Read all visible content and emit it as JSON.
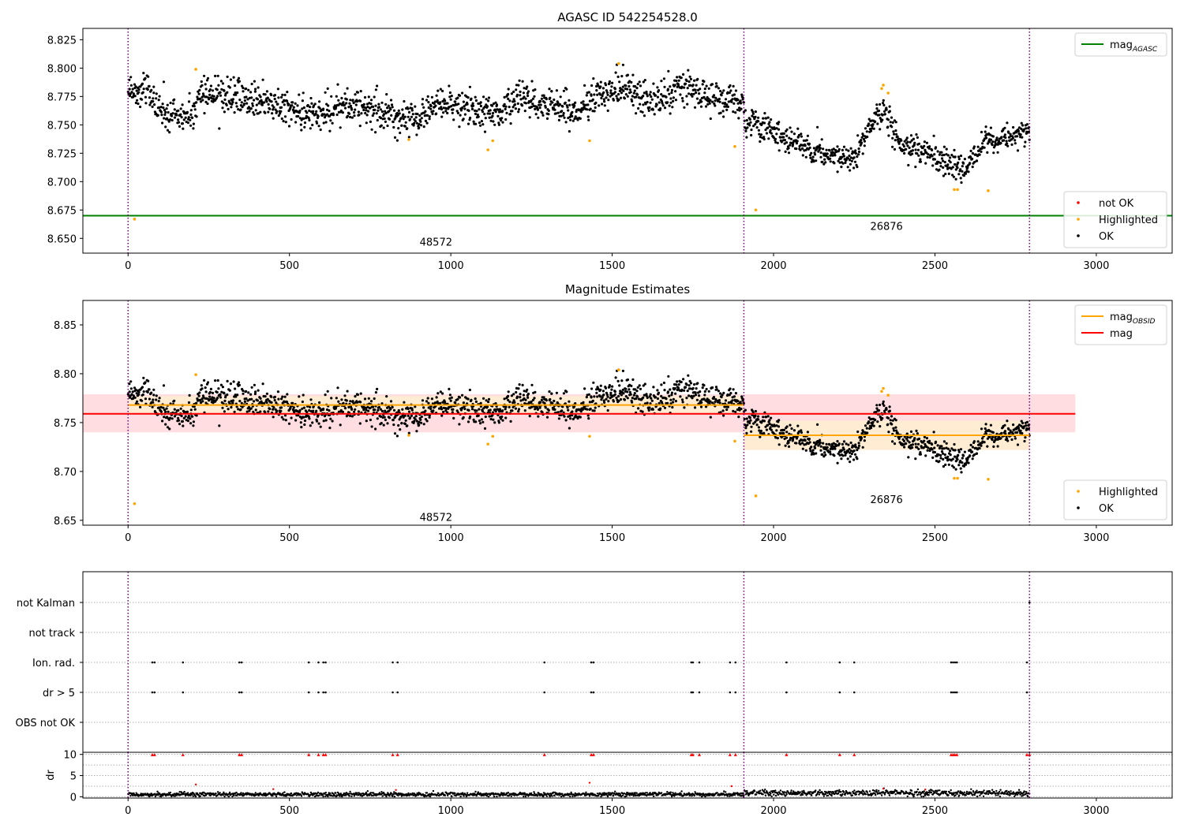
{
  "colors": {
    "ok": "#000000",
    "highlighted": "#ffa500",
    "not_ok": "#ff0000",
    "agasc_line": "#008000",
    "obsid_line": "#ffa500",
    "mag_line": "#ff0000",
    "mag_band": "#ffdde0",
    "obsid_band": "#ffecd2",
    "obs_boundary": "#800080",
    "grid": "#b0b0b0"
  },
  "chart_data": [
    {
      "id": "panel1",
      "type": "scatter",
      "title": "AGASC ID 542254528.0",
      "xlim": [
        -140,
        3235
      ],
      "ylim": [
        8.637,
        8.835
      ],
      "xticks": [
        0,
        500,
        1000,
        1500,
        2000,
        2500,
        3000
      ],
      "yticks": [
        8.65,
        8.675,
        8.7,
        8.725,
        8.75,
        8.775,
        8.8,
        8.825
      ],
      "ytick_labels": [
        "8.650",
        "8.675",
        "8.700",
        "8.725",
        "8.750",
        "8.775",
        "8.800",
        "8.825"
      ],
      "obs_boundaries": [
        0,
        1908,
        2793
      ],
      "obs_labels": [
        {
          "text": "48572",
          "x": 954,
          "y": 8.647
        },
        {
          "text": "26876",
          "x": 2350,
          "y": 8.661
        }
      ],
      "hlines": [
        {
          "name": "mag_AGASC",
          "y": 8.67,
          "x": [
            -140,
            3235
          ],
          "color": "#008000"
        }
      ],
      "bands": [],
      "segments": [
        {
          "x": [
            0,
            1908
          ],
          "base": 8.768,
          "amp": 0.014,
          "wave": [
            [
              0,
              8.782
            ],
            [
              60,
              8.78
            ],
            [
              120,
              8.757
            ],
            [
              200,
              8.76
            ],
            [
              230,
              8.78
            ],
            [
              400,
              8.77
            ],
            [
              600,
              8.76
            ],
            [
              700,
              8.768
            ],
            [
              850,
              8.758
            ],
            [
              900,
              8.752
            ],
            [
              950,
              8.77
            ],
            [
              1150,
              8.76
            ],
            [
              1200,
              8.772
            ],
            [
              1300,
              8.768
            ],
            [
              1400,
              8.76
            ],
            [
              1450,
              8.778
            ],
            [
              1550,
              8.782
            ],
            [
              1620,
              8.768
            ],
            [
              1700,
              8.782
            ],
            [
              1908,
              8.77
            ]
          ]
        },
        {
          "x": [
            1908,
            2793
          ],
          "base": 8.737,
          "amp": 0.011,
          "wave": [
            [
              1908,
              8.755
            ],
            [
              2000,
              8.745
            ],
            [
              2060,
              8.735
            ],
            [
              2150,
              8.725
            ],
            [
              2250,
              8.722
            ],
            [
              2300,
              8.75
            ],
            [
              2340,
              8.765
            ],
            [
              2400,
              8.73
            ],
            [
              2470,
              8.728
            ],
            [
              2550,
              8.718
            ],
            [
              2590,
              8.708
            ],
            [
              2650,
              8.735
            ],
            [
              2700,
              8.737
            ],
            [
              2793,
              8.745
            ]
          ]
        }
      ],
      "highlighted": [
        [
          20,
          8.667
        ],
        [
          210,
          8.799
        ],
        [
          870,
          8.737
        ],
        [
          1115,
          8.728
        ],
        [
          1130,
          8.736
        ],
        [
          1430,
          8.736
        ],
        [
          1520,
          8.804
        ],
        [
          1880,
          8.731
        ],
        [
          1945,
          8.675
        ],
        [
          2335,
          8.782
        ],
        [
          2340,
          8.785
        ],
        [
          2355,
          8.778
        ],
        [
          2560,
          8.693
        ],
        [
          2570,
          8.693
        ],
        [
          2665,
          8.692
        ]
      ],
      "not_ok": [],
      "legends": [
        {
          "position": "upper right",
          "entries": [
            {
              "label": "mag",
              "sub": "AGASC",
              "kind": "line",
              "color": "#008000"
            }
          ]
        },
        {
          "position": "lower right",
          "entries": [
            {
              "label": "not OK",
              "kind": "dot",
              "color": "#ff0000"
            },
            {
              "label": "Highlighted",
              "kind": "dot",
              "color": "#ffa500"
            },
            {
              "label": "OK",
              "kind": "dot",
              "color": "#000000"
            }
          ]
        }
      ]
    },
    {
      "id": "panel2",
      "type": "scatter",
      "title": "Magnitude Estimates",
      "xlim": [
        -140,
        3235
      ],
      "ylim": [
        8.645,
        8.875
      ],
      "xticks": [
        0,
        500,
        1000,
        1500,
        2000,
        2500,
        3000
      ],
      "yticks": [
        8.65,
        8.7,
        8.75,
        8.8,
        8.85
      ],
      "ytick_labels": [
        "8.65",
        "8.70",
        "8.75",
        "8.80",
        "8.85"
      ],
      "obs_boundaries": [
        0,
        1908,
        2793
      ],
      "obs_labels": [
        {
          "text": "48572",
          "x": 954,
          "y": 8.6535
        },
        {
          "text": "26876",
          "x": 2350,
          "y": 8.6715
        }
      ],
      "bands": [
        {
          "x": [
            -140,
            2935
          ],
          "y": [
            8.74,
            8.779
          ],
          "color": "#ffdde0"
        },
        {
          "x": [
            0,
            1908
          ],
          "y": [
            8.76,
            8.777
          ],
          "color": "#ffecd2"
        },
        {
          "x": [
            1908,
            2793
          ],
          "y": [
            8.722,
            8.752
          ],
          "color": "#ffecd2"
        }
      ],
      "hlines": [
        {
          "name": "mag_OBSID",
          "y": 8.768,
          "x": [
            0,
            1908
          ],
          "color": "#ffa500"
        },
        {
          "name": "mag_OBSID",
          "y": 8.737,
          "x": [
            1908,
            2793
          ],
          "color": "#ffa500"
        },
        {
          "name": "mag",
          "y": 8.759,
          "x": [
            -140,
            2935
          ],
          "color": "#ff0000"
        }
      ],
      "segments": [
        {
          "x": [
            0,
            1908
          ],
          "base": 8.768,
          "amp": 0.014,
          "wave": [
            [
              0,
              8.782
            ],
            [
              60,
              8.78
            ],
            [
              120,
              8.757
            ],
            [
              200,
              8.76
            ],
            [
              230,
              8.78
            ],
            [
              400,
              8.77
            ],
            [
              600,
              8.76
            ],
            [
              700,
              8.768
            ],
            [
              850,
              8.758
            ],
            [
              900,
              8.752
            ],
            [
              950,
              8.77
            ],
            [
              1150,
              8.76
            ],
            [
              1200,
              8.772
            ],
            [
              1300,
              8.768
            ],
            [
              1400,
              8.76
            ],
            [
              1450,
              8.778
            ],
            [
              1550,
              8.782
            ],
            [
              1620,
              8.768
            ],
            [
              1700,
              8.782
            ],
            [
              1908,
              8.77
            ]
          ]
        },
        {
          "x": [
            1908,
            2793
          ],
          "base": 8.737,
          "amp": 0.011,
          "wave": [
            [
              1908,
              8.755
            ],
            [
              2000,
              8.745
            ],
            [
              2060,
              8.735
            ],
            [
              2150,
              8.725
            ],
            [
              2250,
              8.722
            ],
            [
              2300,
              8.75
            ],
            [
              2340,
              8.765
            ],
            [
              2400,
              8.73
            ],
            [
              2470,
              8.728
            ],
            [
              2550,
              8.718
            ],
            [
              2590,
              8.708
            ],
            [
              2650,
              8.735
            ],
            [
              2700,
              8.737
            ],
            [
              2793,
              8.745
            ]
          ]
        }
      ],
      "highlighted": [
        [
          20,
          8.667
        ],
        [
          210,
          8.799
        ],
        [
          870,
          8.737
        ],
        [
          1115,
          8.728
        ],
        [
          1130,
          8.736
        ],
        [
          1430,
          8.736
        ],
        [
          1520,
          8.804
        ],
        [
          1880,
          8.731
        ],
        [
          1945,
          8.675
        ],
        [
          2335,
          8.782
        ],
        [
          2340,
          8.785
        ],
        [
          2355,
          8.778
        ],
        [
          2560,
          8.693
        ],
        [
          2570,
          8.693
        ],
        [
          2665,
          8.692
        ]
      ],
      "not_ok": [],
      "legends": [
        {
          "position": "upper right",
          "entries": [
            {
              "label": "mag",
              "sub": "OBSID",
              "kind": "line",
              "color": "#ffa500"
            },
            {
              "label": "mag",
              "kind": "line",
              "color": "#ff0000"
            }
          ]
        },
        {
          "position": "lower right",
          "entries": [
            {
              "label": "Highlighted",
              "kind": "dot",
              "color": "#ffa500"
            },
            {
              "label": "OK",
              "kind": "dot",
              "color": "#000000"
            }
          ]
        }
      ]
    },
    {
      "id": "panel3",
      "type": "scatter",
      "title": "",
      "xlim": [
        -140,
        3235
      ],
      "obs_boundaries": [
        0,
        1908,
        2793
      ],
      "categories": [
        "not Kalman",
        "not track",
        "Ion. rad.",
        "dr > 5",
        "OBS not OK"
      ],
      "flags": {
        "not Kalman": [
          2793
        ],
        "not track": [],
        "Ion. rad.": [
          75,
          82,
          170,
          345,
          352,
          560,
          590,
          605,
          612,
          820,
          835,
          1290,
          1435,
          1442,
          1745,
          1750,
          1770,
          1865,
          1882,
          2040,
          2205,
          2250,
          2550,
          2556,
          2562,
          2568,
          2785
        ],
        "dr > 5": [
          75,
          82,
          170,
          345,
          352,
          560,
          590,
          605,
          612,
          820,
          835,
          1290,
          1435,
          1442,
          1745,
          1750,
          1770,
          1865,
          1882,
          2040,
          2205,
          2250,
          2550,
          2556,
          2562,
          2568,
          2785
        ],
        "OBS not OK": []
      }
    },
    {
      "id": "panel4",
      "type": "scatter",
      "ylabel": "dr",
      "xlim": [
        -140,
        3235
      ],
      "ylim": [
        -0.3,
        10.5
      ],
      "xticks": [
        0,
        500,
        1000,
        1500,
        2000,
        2500,
        3000
      ],
      "yticks": [
        0,
        5,
        10
      ],
      "obs_boundaries": [
        0,
        1908,
        2793
      ],
      "dr_segments": [
        {
          "x": [
            0,
            1908
          ],
          "base": 0.55,
          "amp": 0.25
        },
        {
          "x": [
            1908,
            2793
          ],
          "base": 0.9,
          "amp": 0.35
        }
      ],
      "dr_high": [
        75,
        82,
        170,
        345,
        352,
        560,
        590,
        605,
        612,
        820,
        835,
        1290,
        1435,
        1442,
        1745,
        1750,
        1770,
        1865,
        1882,
        2040,
        2205,
        2250,
        2550,
        2556,
        2562,
        2568,
        2785,
        2793
      ],
      "dr_outliers": [
        [
          210,
          2.9
        ],
        [
          450,
          1.8
        ],
        [
          830,
          1.6
        ],
        [
          1430,
          3.3
        ],
        [
          1870,
          2.5
        ],
        [
          2340,
          1.9
        ],
        [
          2470,
          1.7
        ]
      ]
    }
  ]
}
